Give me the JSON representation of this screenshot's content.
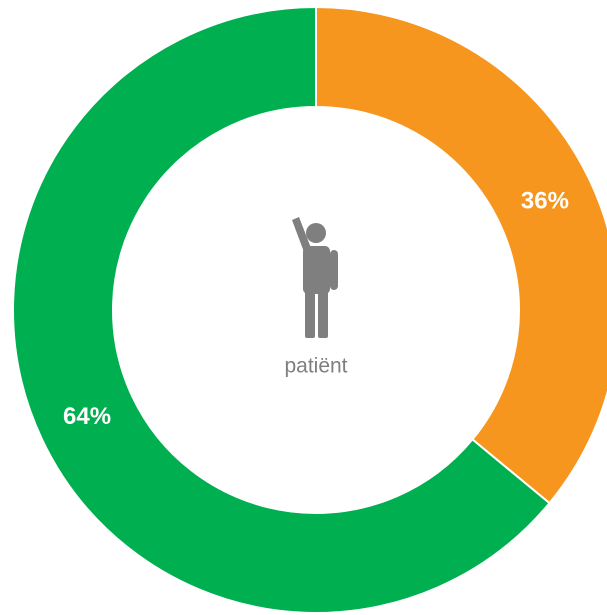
{
  "chart_data": {
    "type": "donut",
    "values": [
      36,
      64
    ],
    "value_labels": [
      "36%",
      "64%"
    ],
    "colors": [
      "#f7961e",
      "#00b050"
    ],
    "center_label": "patiënt"
  }
}
